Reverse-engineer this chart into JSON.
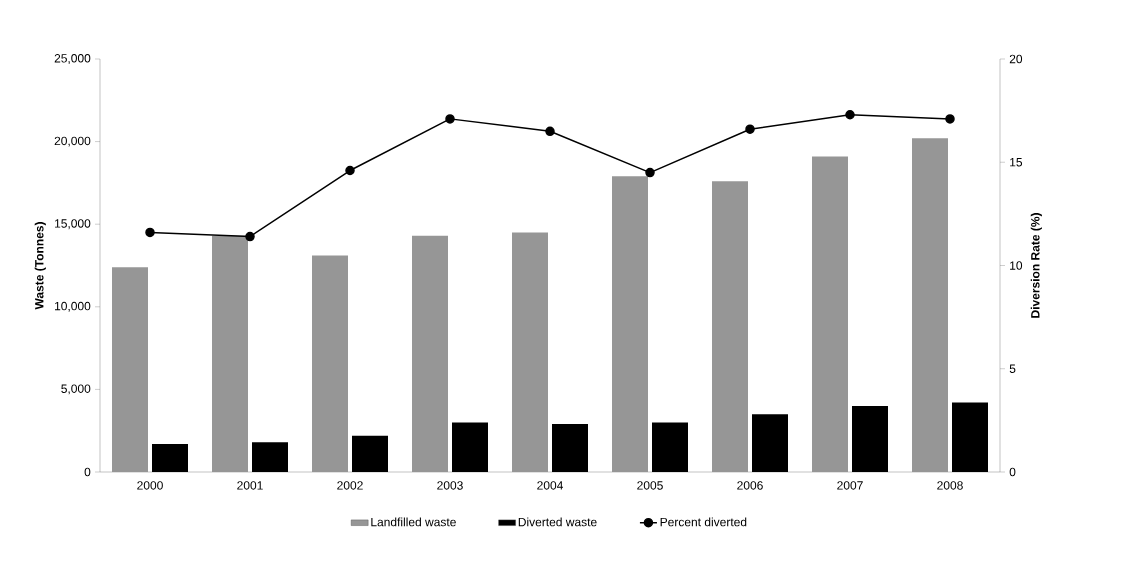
{
  "chart_data": {
    "type": "bar",
    "categories": [
      "2000",
      "2001",
      "2002",
      "2003",
      "2004",
      "2005",
      "2006",
      "2007",
      "2008"
    ],
    "ylabel": "Waste (Tonnes)",
    "y2label": "Diversion Rate (%)",
    "ylim": [
      0,
      25000
    ],
    "yticks": [
      {
        "value": 0,
        "label": "0"
      },
      {
        "value": 5000,
        "label": "5,000"
      },
      {
        "value": 10000,
        "label": "10,000"
      },
      {
        "value": 15000,
        "label": "15,000"
      },
      {
        "value": 20000,
        "label": "20,000"
      },
      {
        "value": 25000,
        "label": "25,000"
      }
    ],
    "y2lim": [
      0,
      20
    ],
    "y2ticks": [
      0,
      5,
      10,
      15,
      20
    ],
    "legend": "bottom",
    "series": [
      {
        "name": "Landfilled waste",
        "color": "#969696",
        "values": [
          12400,
          14300,
          13100,
          14300,
          14500,
          17900,
          17600,
          19100,
          20200
        ]
      },
      {
        "name": "Diverted waste",
        "color": "#000000",
        "values": [
          1700,
          1800,
          2200,
          3000,
          2900,
          3000,
          3500,
          4000,
          4200
        ]
      },
      {
        "name": "Percent diverted",
        "type": "line",
        "axis": "y2",
        "color": "#000000",
        "marker": "circle",
        "values": [
          11.6,
          11.4,
          14.6,
          17.1,
          16.5,
          14.5,
          16.6,
          17.3,
          17.1
        ]
      }
    ]
  }
}
